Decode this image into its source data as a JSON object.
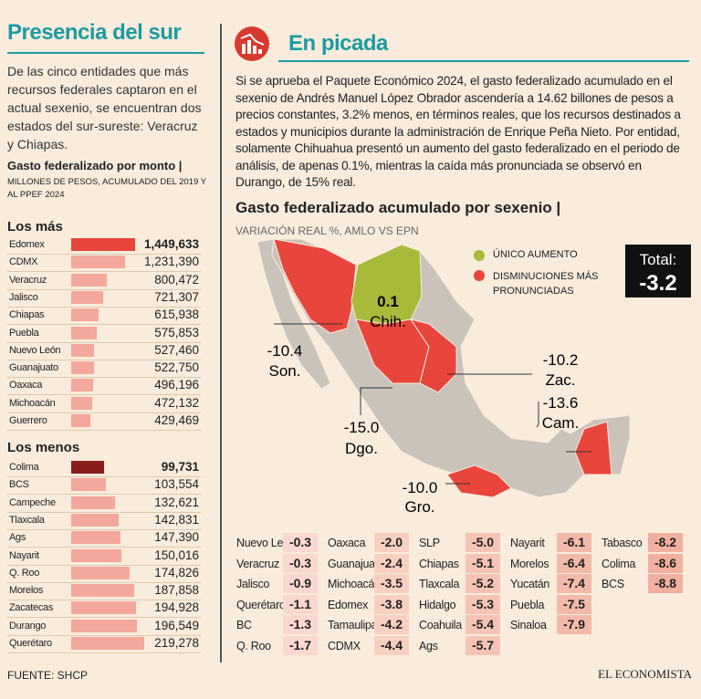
{
  "left": {
    "title": "Presencia del sur",
    "intro": "De las cinco entidades que más recursos federales captaron en el actual sexenio, se encuentran dos estados del sur-sureste: Veracruz y Chiapas.",
    "chart_title": "Gasto federalizado por monto |",
    "chart_subtitle": "MILLONES DE PESOS, ACUMULADO DEL 2019 Y AL PPEF 2024"
  },
  "chart_data": [
    {
      "type": "bar",
      "title": "Los más",
      "categories": [
        "Edomex",
        "CDMX",
        "Veracruz",
        "Jalisco",
        "Chiapas",
        "Puebla",
        "Nuevo León",
        "Guanajuato",
        "Oaxaca",
        "Michoacán",
        "Guerrero"
      ],
      "values": [
        1449633,
        1231390,
        800472,
        721307,
        615938,
        575853,
        527460,
        522750,
        496196,
        472132,
        429469
      ],
      "value_labels": [
        "1,449,633",
        "1,231,390",
        "800,472",
        "721,307",
        "615,938",
        "575,853",
        "527,460",
        "522,750",
        "496,196",
        "472,132",
        "429,469"
      ],
      "colors": [
        "#e8453c",
        "#f4a79c",
        "#f4a79c",
        "#f4a79c",
        "#f4a79c",
        "#f4a79c",
        "#f4a79c",
        "#f4a79c",
        "#f4a79c",
        "#f4a79c",
        "#f4a79c"
      ]
    },
    {
      "type": "bar",
      "title": "Los menos",
      "categories": [
        "Colima",
        "BCS",
        "Campeche",
        "Tlaxcala",
        "Ags",
        "Nayarit",
        "Q. Roo",
        "Morelos",
        "Zacatecas",
        "Durango",
        "Querétaro"
      ],
      "values": [
        99731,
        103554,
        132621,
        142831,
        147390,
        150016,
        174826,
        187858,
        194928,
        196549,
        219278
      ],
      "value_labels": [
        "99,731",
        "103,554",
        "132,621",
        "142,831",
        "147,390",
        "150,016",
        "174,826",
        "187,858",
        "194,928",
        "196,549",
        "219,278"
      ],
      "colors": [
        "#8b1c1c",
        "#f4a79c",
        "#f4a79c",
        "#f4a79c",
        "#f4a79c",
        "#f4a79c",
        "#f4a79c",
        "#f4a79c",
        "#f4a79c",
        "#f4a79c",
        "#f4a79c"
      ]
    }
  ],
  "right": {
    "title": "En picada",
    "body": "Si se aprueba el Paquete Económico 2024, el gasto federalizado acumulado en el sexenio de Andrés Manuel López Obrador ascendería a 14.62 billones de pesos a precios constantes, 3.2% menos, en términos reales, que los recursos destinados a estados y municipios durante la administración de Enrique Peña Nieto. Por entidad, solamente Chihuahua presentó un aumento del gasto federalizado en el periodo de análisis, de apenas 0.1%, mientras la caída más pronunciada se observó en Durango, de 15% real.",
    "map_title": "Gasto federalizado acumulado por sexenio |",
    "map_subtitle": "VARIACIÓN REAL %, AMLO VS EPN",
    "legend": [
      {
        "label": "ÚNICO AUMENTO",
        "color": "#a9b93a"
      },
      {
        "label": "DISMINUCIONES MÁS PRONUNCIADAS",
        "color": "#e8453c"
      }
    ],
    "total_label": "Total:",
    "total_value": "-3.2",
    "callouts": [
      {
        "value": "0.1",
        "state": "Chih."
      },
      {
        "value": "-10.4",
        "state": "Son."
      },
      {
        "value": "-15.0",
        "state": "Dgo."
      },
      {
        "value": "-10.2",
        "state": "Zac."
      },
      {
        "value": "-13.6",
        "state": "Cam."
      },
      {
        "value": "-10.0",
        "state": "Gro."
      }
    ],
    "table": [
      [
        [
          "Nuevo León",
          "-0.3"
        ],
        [
          "Veracruz",
          "-0.3"
        ],
        [
          "Jalisco",
          "-0.9"
        ],
        [
          "Querétaro",
          "-1.1"
        ],
        [
          "BC",
          "-1.3"
        ],
        [
          "Q. Roo",
          "-1.7"
        ]
      ],
      [
        [
          "Oaxaca",
          "-2.0"
        ],
        [
          "Guanajuato",
          "-2.4"
        ],
        [
          "Michoacán",
          "-3.5"
        ],
        [
          "Edomex",
          "-3.8"
        ],
        [
          "Tamaulipas",
          "-4.2"
        ],
        [
          "CDMX",
          "-4.4"
        ]
      ],
      [
        [
          "SLP",
          "-5.0"
        ],
        [
          "Chiapas",
          "-5.1"
        ],
        [
          "Tlaxcala",
          "-5.2"
        ],
        [
          "Hidalgo",
          "-5.3"
        ],
        [
          "Coahuila",
          "-5.4"
        ],
        [
          "Ags",
          "-5.7"
        ]
      ],
      [
        [
          "Nayarit",
          "-6.1"
        ],
        [
          "Morelos",
          "-6.4"
        ],
        [
          "Yucatán",
          "-7.4"
        ],
        [
          "Puebla",
          "-7.5"
        ],
        [
          "Sinaloa",
          "-7.9"
        ]
      ],
      [
        [
          "Tabasco",
          "-8.2"
        ],
        [
          "Colima",
          "-8.6"
        ],
        [
          "BCS",
          "-8.8"
        ]
      ]
    ]
  },
  "footer": {
    "source": "FUENTE: SHCP",
    "brand": "EL ECONOMISTA"
  }
}
